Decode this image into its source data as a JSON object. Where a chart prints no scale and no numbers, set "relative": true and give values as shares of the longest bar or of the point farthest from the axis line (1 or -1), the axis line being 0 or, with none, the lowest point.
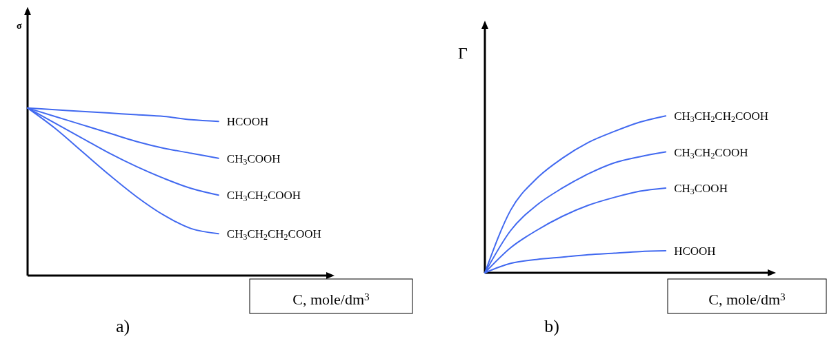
{
  "chart_data": [
    {
      "type": "line",
      "title": "a)",
      "xlabel": "C, mole/dm$^{3}$",
      "ylabel": "σ",
      "relative": true,
      "categories": [
        null,
        null,
        null,
        null,
        null,
        null,
        null,
        null,
        null,
        null,
        null,
        null
      ],
      "series": [
        {
          "name": "HCOOH",
          "color": "#4169f0",
          "values": [
            1,
            0.99,
            0.98,
            0.97,
            0.96,
            0.95,
            0.93,
            0.92,
            null,
            null,
            null,
            null
          ]
        },
        {
          "name": "CH$_{3}$COOH",
          "color": "#4169f0",
          "values": [
            1,
            0.95,
            0.9,
            0.85,
            0.8,
            0.76,
            0.73,
            0.7,
            null,
            null,
            null,
            null
          ]
        },
        {
          "name": "CH$_{3}$CH$_{2}$COOH",
          "color": "#4169f0",
          "values": [
            1,
            0.91,
            0.82,
            0.73,
            0.65,
            0.58,
            0.52,
            0.48,
            null,
            null,
            null,
            null
          ]
        },
        {
          "name": "CH$_{3}$CH$_{2}$CH$_{2}$COOH",
          "color": "#4169f0",
          "values": [
            1,
            0.88,
            0.74,
            0.6,
            0.47,
            0.36,
            0.28,
            0.25,
            null,
            null,
            null,
            null
          ]
        }
      ]
    },
    {
      "type": "line",
      "title": "b)",
      "xlabel": "C, mole/dm$^{3}$",
      "ylabel": "Γ",
      "relative": true,
      "categories": [
        null,
        null,
        null,
        null,
        null,
        null,
        null,
        null,
        null,
        null,
        null,
        null
      ],
      "series": [
        {
          "name": "CH$_{3}$CH$_{2}$CH$_{2}$COOH",
          "color": "#4169f0",
          "values": [
            0,
            0.4,
            0.6,
            0.73,
            0.83,
            0.9,
            0.96,
            1,
            null,
            null,
            null,
            null
          ]
        },
        {
          "name": "CH$_{3}$CH$_{2}$COOH",
          "color": "#4169f0",
          "values": [
            0,
            0.27,
            0.43,
            0.54,
            0.63,
            0.7,
            0.74,
            0.77,
            null,
            null,
            null,
            null
          ]
        },
        {
          "name": "CH$_{3}$COOH",
          "color": "#4169f0",
          "values": [
            0,
            0.16,
            0.27,
            0.36,
            0.43,
            0.48,
            0.52,
            0.54,
            null,
            null,
            null,
            null
          ]
        },
        {
          "name": "HCOOH",
          "color": "#4169f0",
          "values": [
            0,
            0.06,
            0.085,
            0.1,
            0.115,
            0.125,
            0.135,
            0.14,
            null,
            null,
            null,
            null
          ]
        }
      ]
    }
  ]
}
